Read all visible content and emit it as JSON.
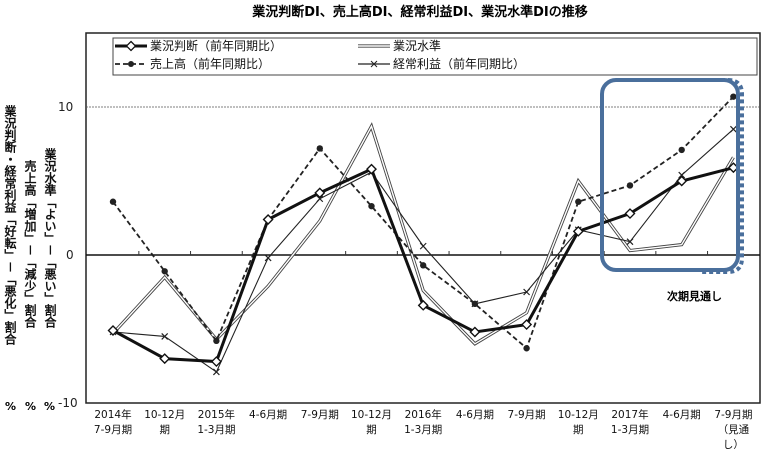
{
  "chart_data": {
    "type": "line",
    "title": "業況判断DI、売上高DI、経常利益DI、業況水準DIの推移",
    "categories": [
      [
        "2014年",
        "7-9月期"
      ],
      [
        "10-12月",
        "期"
      ],
      [
        "2015年",
        "1-3月期"
      ],
      [
        "4-6月期"
      ],
      [
        "7-9月期"
      ],
      [
        "10-12月",
        "期"
      ],
      [
        "2016年",
        "1-3月期"
      ],
      [
        "4-6月期"
      ],
      [
        "7-9月期"
      ],
      [
        "10-12月",
        "期"
      ],
      [
        "2017年",
        "1-3月期"
      ],
      [
        "4-6月期"
      ],
      [
        "7-9月期",
        "（見通",
        "し）"
      ]
    ],
    "ylim": [
      -10,
      15
    ],
    "yticks": [
      "10",
      "0",
      "-10"
    ],
    "ylabels": [
      "業況判断・経常利益「好転」－「悪化」割合",
      "売上高「増加」－「減少」割合",
      "業況水準「よい」－「悪い」割合"
    ],
    "yunits": [
      "%",
      "%",
      "%"
    ],
    "gridline_at": 10,
    "legend_position": "top",
    "series": [
      {
        "name": "業況判断（前年同期比）",
        "style": "thick-diamond",
        "values": [
          -5.1,
          -7.0,
          -7.2,
          2.4,
          4.2,
          5.8,
          -3.4,
          -5.2,
          -4.7,
          1.6,
          2.8,
          5.0,
          5.9
        ]
      },
      {
        "name": "業況水準",
        "style": "double-line",
        "values": [
          -5.3,
          -1.5,
          -5.7,
          -2.1,
          2.3,
          8.7,
          -2.4,
          -6.0,
          -3.9,
          5.0,
          0.3,
          0.7,
          6.6
        ]
      },
      {
        "name": "売上高（前年同期比）",
        "style": "dashed-dot",
        "values": [
          3.6,
          -1.1,
          -5.8,
          2.4,
          7.2,
          3.3,
          -0.7,
          -3.3,
          -6.3,
          3.6,
          4.7,
          7.1,
          10.7
        ]
      },
      {
        "name": "経常利益（前年同期比）",
        "style": "thin-x",
        "values": [
          -5.2,
          -5.5,
          -7.9,
          -0.2,
          3.8,
          5.6,
          0.6,
          -3.3,
          -2.5,
          1.7,
          0.9,
          5.4,
          8.5
        ]
      }
    ],
    "annotation": "次期見通し",
    "highlight_color": "#4a6f9c"
  }
}
